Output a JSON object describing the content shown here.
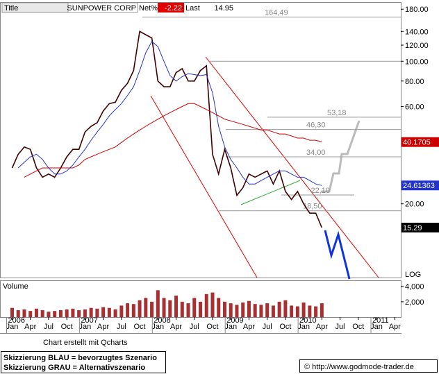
{
  "header": {
    "title_label": "Title",
    "symbol": "SUNPOWER CORP",
    "net_label": "Net%",
    "net_value": -2.22,
    "last_label": "Last",
    "last_value": 14.95
  },
  "chart_data": [
    {
      "type": "line",
      "log_scale": true,
      "scale_label": "LOG",
      "x": [
        "2006-01",
        "2006-02",
        "2006-03",
        "2006-04",
        "2006-05",
        "2006-06",
        "2006-07",
        "2006-08",
        "2006-09",
        "2006-10",
        "2006-11",
        "2006-12",
        "2007-01",
        "2007-02",
        "2007-03",
        "2007-04",
        "2007-05",
        "2007-06",
        "2007-07",
        "2007-08",
        "2007-09",
        "2007-10",
        "2007-11",
        "2007-12",
        "2008-01",
        "2008-02",
        "2008-03",
        "2008-04",
        "2008-05",
        "2008-06",
        "2008-07",
        "2008-08",
        "2008-09",
        "2008-10",
        "2008-11",
        "2008-12",
        "2009-01",
        "2009-02",
        "2009-03",
        "2009-04",
        "2009-05",
        "2009-06",
        "2009-07",
        "2009-08",
        "2009-09",
        "2009-10",
        "2009-11",
        "2009-12",
        "2010-01",
        "2010-02",
        "2010-03",
        "2010-04"
      ],
      "series": [
        {
          "color": "#400000",
          "values": [
            30,
            35,
            38,
            37,
            30,
            27,
            28,
            27,
            30,
            34,
            37,
            37,
            45,
            48,
            50,
            57,
            62,
            63,
            72,
            78,
            90,
            140,
            135,
            130,
            80,
            75,
            75,
            88,
            92,
            80,
            80,
            90,
            95,
            35,
            28,
            37,
            30,
            22,
            24,
            28,
            27,
            28,
            29,
            25,
            29,
            23,
            21,
            23,
            20,
            18,
            18,
            15.29
          ]
        },
        {
          "color": "#2233cc",
          "values": [
            null,
            30,
            32,
            34,
            35,
            33,
            30,
            28,
            28,
            29,
            31,
            34,
            37,
            41,
            45,
            49,
            54,
            58,
            62,
            68,
            75,
            90,
            110,
            125,
            118,
            100,
            85,
            80,
            84,
            87,
            86,
            85,
            86,
            70,
            48,
            38,
            33,
            30,
            27,
            25,
            25,
            26,
            27,
            28,
            29,
            29,
            28,
            27,
            27,
            26,
            25,
            24.6
          ]
        },
        {
          "color": "#cc0000",
          "values": [
            null,
            null,
            27,
            28,
            29,
            30,
            30,
            30,
            30,
            30,
            30,
            31,
            33,
            34,
            35,
            36,
            37,
            38,
            40,
            42,
            44,
            46,
            48,
            50,
            52,
            54,
            56,
            58,
            60,
            62,
            62,
            60,
            58,
            56,
            54,
            52,
            51,
            50,
            49,
            48,
            47,
            46,
            46,
            45,
            44,
            44,
            43,
            42,
            42,
            41,
            41,
            40.2
          ]
        }
      ],
      "xlim": [
        "2005-11",
        "2011-05"
      ],
      "xticks": [
        {
          "value": "2006-01",
          "label": "Jan"
        },
        {
          "value": "2006-04",
          "label": "Apr"
        },
        {
          "value": "2006-07",
          "label": "Jul"
        },
        {
          "value": "2006-10",
          "label": "Oct"
        },
        {
          "value": "2007-01",
          "label": "Jan"
        },
        {
          "value": "2007-04",
          "label": "Apr"
        },
        {
          "value": "2007-07",
          "label": "Jul"
        },
        {
          "value": "2007-10",
          "label": "Oct"
        },
        {
          "value": "2008-01",
          "label": "Jan"
        },
        {
          "value": "2008-04",
          "label": "Apr"
        },
        {
          "value": "2008-07",
          "label": "Jul"
        },
        {
          "value": "2008-10",
          "label": "Oct"
        },
        {
          "value": "2009-01",
          "label": "Jan"
        },
        {
          "value": "2009-04",
          "label": "Apr"
        },
        {
          "value": "2009-07",
          "label": "Jul"
        },
        {
          "value": "2009-10",
          "label": "Oct"
        },
        {
          "value": "2010-01",
          "label": "Jan"
        },
        {
          "value": "2010-04",
          "label": "Apr"
        },
        {
          "value": "2010-07",
          "label": "Jul"
        },
        {
          "value": "2010-10",
          "label": "Oct"
        },
        {
          "value": "2011-01",
          "label": "Jan"
        },
        {
          "value": "2011-04",
          "label": "Apr"
        }
      ],
      "year_ticks": [
        {
          "value": "2006-01",
          "label": "2006"
        },
        {
          "value": "2007-01",
          "label": "2007"
        },
        {
          "value": "2008-01",
          "label": "2008"
        },
        {
          "value": "2009-01",
          "label": "2009"
        },
        {
          "value": "2010-01",
          "label": "2010"
        },
        {
          "value": "2011-01",
          "label": "2011"
        }
      ],
      "ylim": [
        8.7,
        192
      ],
      "yticks": [
        {
          "value": 180,
          "label": "180.00"
        },
        {
          "value": 140,
          "label": "140.00"
        },
        {
          "value": 120,
          "label": "120.00"
        },
        {
          "value": 100,
          "label": "100.00"
        },
        {
          "value": 80,
          "label": "80.00"
        },
        {
          "value": 60,
          "label": "60.00"
        },
        {
          "value": 20,
          "label": "20.00"
        }
      ],
      "levels": [
        {
          "value": 164.49,
          "label": "164,49"
        },
        100,
        {
          "value": 53.18,
          "label": "53,18"
        },
        {
          "value": 46.3,
          "label": "46,30"
        },
        {
          "value": 34.0,
          "label": "34,00"
        },
        {
          "value": 22.1,
          "label": "22,10"
        },
        {
          "value": 18.5,
          "label": "18,50"
        }
      ],
      "price_tags": [
        {
          "value": 40.1705,
          "color": "#cc0000"
        },
        {
          "value": 24.61363,
          "color": "#2233cc"
        },
        {
          "value": 15.29,
          "color": "#000000"
        }
      ]
    },
    {
      "type": "bar",
      "title": "Volume",
      "color": "#a83030",
      "x": [
        "2006-01",
        "2006-02",
        "2006-03",
        "2006-04",
        "2006-05",
        "2006-06",
        "2006-07",
        "2006-08",
        "2006-09",
        "2006-10",
        "2006-11",
        "2006-12",
        "2007-01",
        "2007-02",
        "2007-03",
        "2007-04",
        "2007-05",
        "2007-06",
        "2007-07",
        "2007-08",
        "2007-09",
        "2007-10",
        "2007-11",
        "2007-12",
        "2008-01",
        "2008-02",
        "2008-03",
        "2008-04",
        "2008-05",
        "2008-06",
        "2008-07",
        "2008-08",
        "2008-09",
        "2008-10",
        "2008-11",
        "2008-12",
        "2009-01",
        "2009-02",
        "2009-03",
        "2009-04",
        "2009-05",
        "2009-06",
        "2009-07",
        "2009-08",
        "2009-09",
        "2009-10",
        "2009-11",
        "2009-12",
        "2010-01",
        "2010-02",
        "2010-03",
        "2010-04"
      ],
      "values": [
        1200,
        900,
        1000,
        800,
        1100,
        900,
        700,
        800,
        900,
        1000,
        1100,
        900,
        1000,
        1200,
        1100,
        1300,
        1200,
        1000,
        1500,
        1800,
        1700,
        2200,
        2500,
        2000,
        3500,
        2500,
        2200,
        2800,
        2000,
        1800,
        2500,
        2000,
        3000,
        3200,
        2500,
        2000,
        1800,
        1600,
        1900,
        2100,
        1700,
        1600,
        1800,
        1500,
        2000,
        2200,
        1500,
        1400,
        1900,
        1500,
        1400,
        1800
      ],
      "ylim": [
        0,
        4700
      ],
      "yticks": [
        {
          "value": 4000,
          "label": "4,000"
        },
        {
          "value": 2000,
          "label": "2,000"
        }
      ]
    }
  ],
  "footer": {
    "credit": "Chart erstellt mit Qcharts",
    "legend_blue": "Skizzierung BLAU = bevorzugtes Szenario",
    "legend_gray": "Skizzierung GRAU = Alternativszenario",
    "copyright": "© http://www.godmode-trader.de"
  }
}
